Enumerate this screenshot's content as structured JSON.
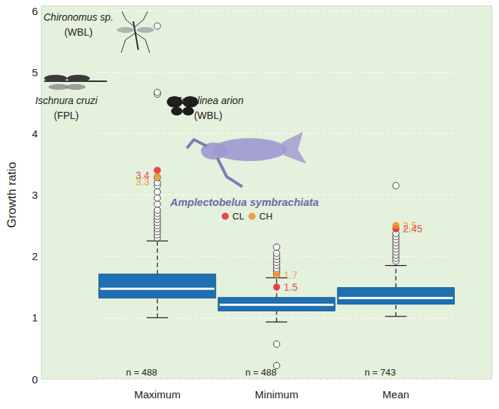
{
  "chart_data": {
    "type": "boxplot",
    "y_label": "Growth ratio",
    "categories": [
      "Maximum",
      "Minimum",
      "Mean"
    ],
    "ylim": [
      0,
      6
    ],
    "yticks": [
      0,
      1,
      2,
      3,
      4,
      5,
      6
    ],
    "grid": true,
    "color": "#1f6fb2",
    "boxes": [
      {
        "low": 1.0,
        "q1": 1.32,
        "median": 1.47,
        "q3": 1.71,
        "high": 2.25
      },
      {
        "low": 0.93,
        "q1": 1.11,
        "median": 1.21,
        "q3": 1.33,
        "high": 1.65
      },
      {
        "low": 1.02,
        "q1": 1.22,
        "median": 1.32,
        "q3": 1.49,
        "high": 1.85
      }
    ],
    "outliers": [
      [
        2.3,
        2.35,
        2.4,
        2.45,
        2.5,
        2.55,
        2.6,
        2.65,
        2.7,
        2.75,
        2.85,
        2.95,
        3.05,
        3.15,
        3.2,
        3.28,
        4.64,
        4.67,
        5.75
      ],
      [
        1.7,
        1.75,
        1.8,
        1.85,
        1.9,
        1.95,
        2.0,
        2.05,
        2.15,
        0.57,
        0.22
      ],
      [
        1.92,
        1.97,
        2.02,
        2.07,
        2.12,
        2.17,
        2.22,
        2.27,
        2.32,
        2.37,
        3.15
      ]
    ],
    "n_labels": [
      "n = 488",
      "n = 488",
      "n = 743"
    ],
    "series": [
      {
        "name": "CL",
        "color": "#e2202a",
        "type": "scatter",
        "marker": "circle",
        "data_labels": true,
        "values": [
          3.4,
          1.5,
          2.45
        ]
      },
      {
        "name": "CH",
        "color": "#f0891e",
        "type": "scatter",
        "marker": "circle",
        "data_labels": true,
        "values": [
          3.3,
          1.7,
          2.5
        ]
      }
    ],
    "annotations": [
      {
        "name": "Chironomus sp.",
        "note": "(WBL)"
      },
      {
        "name": "Ischnura cruzi",
        "note": "(FPL)"
      },
      {
        "name": "Maculinea arion",
        "note": "(WBL)"
      },
      {
        "name": "Amplectobelua symbrachiata",
        "color": "#6c68a8"
      }
    ]
  }
}
